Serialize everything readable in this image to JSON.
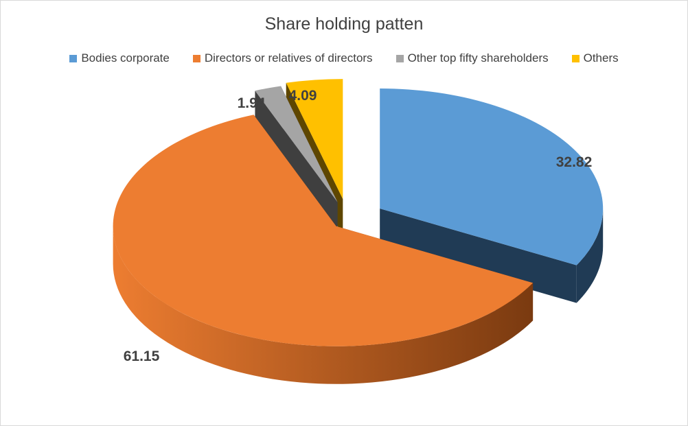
{
  "chart_data": {
    "type": "pie",
    "title": "Share holding patten",
    "legend_position": "top",
    "style": "3d-exploded",
    "slices": [
      {
        "label": "Bodies corporate",
        "value": 32.82,
        "value_label": "32.82",
        "color": "#5b9bd5",
        "side_color": "#203b55"
      },
      {
        "label": "Directors or relatives of directors",
        "value": 61.15,
        "value_label": "61.15",
        "color": "#ed7d31",
        "side_color": "#7a3a10"
      },
      {
        "label": "Other top fifty shareholders",
        "value": 1.94,
        "value_label": "1.94",
        "color": "#a5a5a5",
        "side_color": "#3f3f3f"
      },
      {
        "label": "Others",
        "value": 4.09,
        "value_label": "4.09",
        "color": "#ffc000",
        "side_color": "#5e4600"
      }
    ]
  }
}
